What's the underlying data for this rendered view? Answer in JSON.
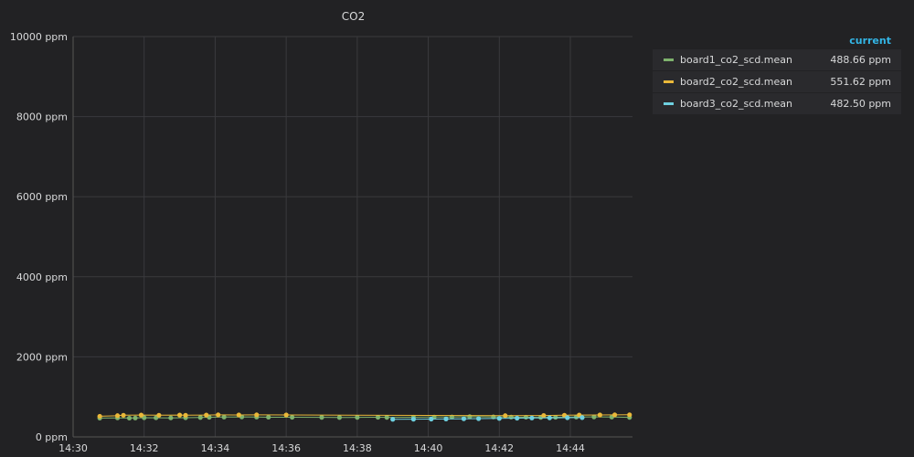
{
  "chart_data": {
    "type": "line",
    "title": "CO2",
    "xlabel": "",
    "ylabel": "",
    "x_range": [
      "14:30",
      "14:45:45"
    ],
    "x_ticks": [
      "14:30",
      "14:32",
      "14:34",
      "14:36",
      "14:38",
      "14:40",
      "14:42",
      "14:44"
    ],
    "ylim": [
      0,
      10000
    ],
    "y_ticks": [
      {
        "value": 0,
        "label": "0 ppm"
      },
      {
        "value": 2000,
        "label": "2000 ppm"
      },
      {
        "value": 4000,
        "label": "4000 ppm"
      },
      {
        "value": 6000,
        "label": "6000 ppm"
      },
      {
        "value": 8000,
        "label": "8000 ppm"
      },
      {
        "value": 10000,
        "label": "10000 ppm"
      }
    ],
    "grid": true,
    "legend_position": "right",
    "legend_header": "current",
    "series": [
      {
        "name": "board1_co2_scd.mean",
        "color": "#7eb26d",
        "current": "488.66 ppm",
        "points": [
          [
            "14:30:45",
            470
          ],
          [
            "14:31:15",
            475
          ],
          [
            "14:31:35",
            470
          ],
          [
            "14:31:45",
            472
          ],
          [
            "14:32:00",
            480
          ],
          [
            "14:32:20",
            478
          ],
          [
            "14:32:45",
            475
          ],
          [
            "14:33:10",
            480
          ],
          [
            "14:33:35",
            485
          ],
          [
            "14:33:50",
            490
          ],
          [
            "14:34:15",
            495
          ],
          [
            "14:34:45",
            500
          ],
          [
            "14:35:10",
            495
          ],
          [
            "14:35:30",
            492
          ],
          [
            "14:36:10",
            490
          ],
          [
            "14:37:00",
            488
          ],
          [
            "14:37:30",
            485
          ],
          [
            "14:38:00",
            488
          ],
          [
            "14:38:35",
            490
          ],
          [
            "14:38:50",
            488
          ],
          [
            "14:39:35",
            492
          ],
          [
            "14:40:10",
            495
          ],
          [
            "14:40:40",
            498
          ],
          [
            "14:41:10",
            505
          ],
          [
            "14:41:50",
            500
          ],
          [
            "14:42:20",
            495
          ],
          [
            "14:42:45",
            492
          ],
          [
            "14:43:10",
            488
          ],
          [
            "14:43:35",
            490
          ],
          [
            "14:44:10",
            495
          ],
          [
            "14:44:40",
            500
          ],
          [
            "14:45:10",
            495
          ],
          [
            "14:45:40",
            488
          ]
        ]
      },
      {
        "name": "board2_co2_scd.mean",
        "color": "#eab839",
        "current": "551.62 ppm",
        "points": [
          [
            "14:30:45",
            515
          ],
          [
            "14:31:15",
            530
          ],
          [
            "14:31:25",
            540
          ],
          [
            "14:31:55",
            545
          ],
          [
            "14:32:25",
            540
          ],
          [
            "14:33:00",
            545
          ],
          [
            "14:33:10",
            540
          ],
          [
            "14:33:45",
            545
          ],
          [
            "14:34:05",
            550
          ],
          [
            "14:34:40",
            548
          ],
          [
            "14:35:10",
            550
          ],
          [
            "14:36:00",
            548
          ],
          [
            "14:42:10",
            530
          ],
          [
            "14:43:15",
            535
          ],
          [
            "14:43:50",
            540
          ],
          [
            "14:44:15",
            545
          ],
          [
            "14:44:50",
            548
          ],
          [
            "14:45:15",
            550
          ],
          [
            "14:45:40",
            552
          ]
        ]
      },
      {
        "name": "board3_co2_scd.mean",
        "color": "#6ed0e0",
        "current": "482.50 ppm",
        "points": [
          [
            "14:39:00",
            440
          ],
          [
            "14:39:35",
            442
          ],
          [
            "14:40:05",
            445
          ],
          [
            "14:40:30",
            448
          ],
          [
            "14:41:00",
            452
          ],
          [
            "14:41:25",
            456
          ],
          [
            "14:42:00",
            462
          ],
          [
            "14:42:30",
            468
          ],
          [
            "14:42:55",
            472
          ],
          [
            "14:43:25",
            476
          ],
          [
            "14:43:55",
            480
          ],
          [
            "14:44:20",
            482
          ]
        ]
      }
    ]
  }
}
